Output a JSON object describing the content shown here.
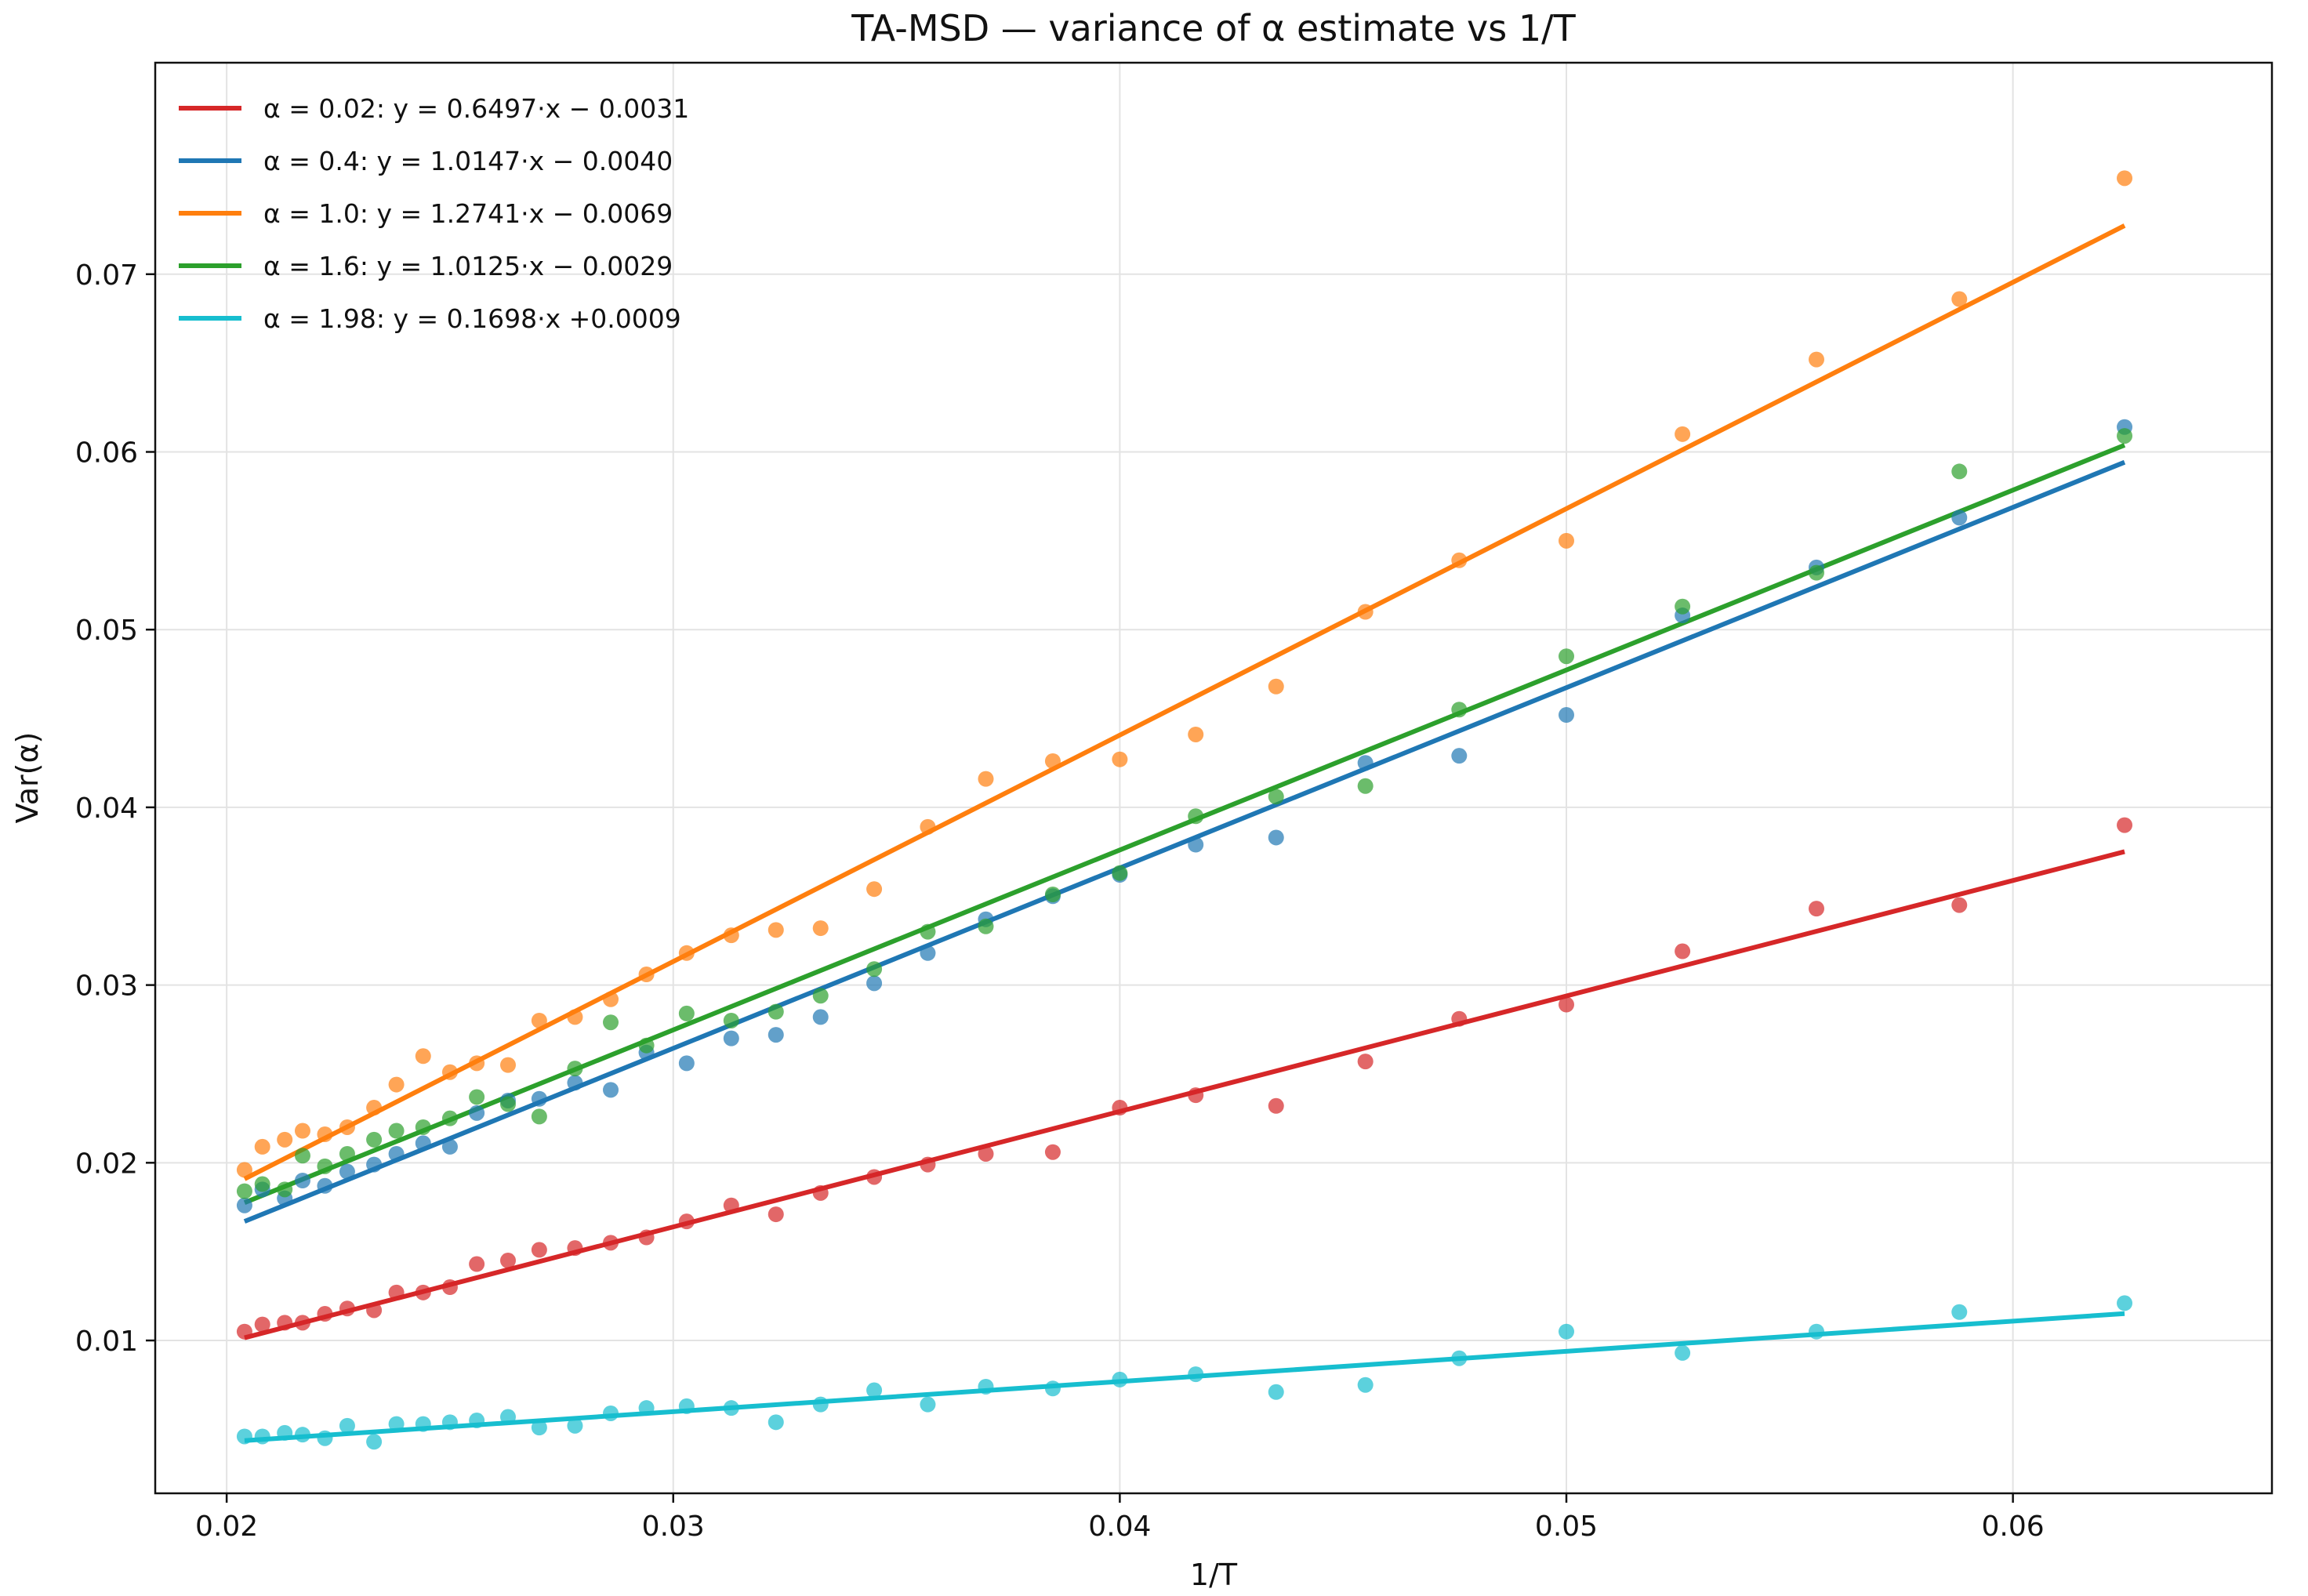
{
  "chart_data": {
    "type": "scatter",
    "title": "TA-MSD — variance of α estimate vs 1/T",
    "xlabel": "1/T",
    "ylabel": "Var(α)",
    "xlim": [
      0.0184,
      0.0658
    ],
    "ylim": [
      0.0014,
      0.0819
    ],
    "xticks": [
      0.02,
      0.03,
      0.04,
      0.05,
      0.06
    ],
    "xtick_labels": [
      "0.02",
      "0.03",
      "0.04",
      "0.05",
      "0.06"
    ],
    "yticks": [
      0.01,
      0.02,
      0.03,
      0.04,
      0.05,
      0.06,
      0.07
    ],
    "ytick_labels": [
      "0.01",
      "0.02",
      "0.03",
      "0.04",
      "0.05",
      "0.06",
      "0.07"
    ],
    "grid": true,
    "legend_position": "top-left",
    "x": [
      0.0204,
      0.0208,
      0.0213,
      0.0217,
      0.0222,
      0.0227,
      0.0233,
      0.0238,
      0.0244,
      0.025,
      0.0256,
      0.0263,
      0.027,
      0.0278,
      0.0286,
      0.0294,
      0.0303,
      0.0313,
      0.0323,
      0.0333,
      0.0345,
      0.0357,
      0.037,
      0.0385,
      0.04,
      0.0417,
      0.0435,
      0.0455,
      0.0476,
      0.05,
      0.0526,
      0.0556,
      0.0588,
      0.0625
    ],
    "series": [
      {
        "name": "α = 0.02",
        "legend_label": "α = 0.02:  y = 0.6497·x − 0.0031",
        "color": "#d62728",
        "slope": 0.6497,
        "intercept": -0.0031,
        "values": [
          0.0105,
          0.0109,
          0.011,
          0.011,
          0.0115,
          0.0118,
          0.0117,
          0.0127,
          0.0127,
          0.013,
          0.0143,
          0.0145,
          0.0151,
          0.0152,
          0.0155,
          0.0158,
          0.0167,
          0.0176,
          0.0171,
          0.0183,
          0.0192,
          0.0199,
          0.0205,
          0.0206,
          0.0231,
          0.0238,
          0.0232,
          0.0257,
          0.0281,
          0.0289,
          0.0319,
          0.0343,
          0.0345,
          0.039
        ]
      },
      {
        "name": "α = 0.4",
        "legend_label": "α = 0.4:  y = 1.0147·x −  0.0040",
        "color": "#1f77b4",
        "slope": 1.0147,
        "intercept": -0.004,
        "values": [
          0.0176,
          0.0185,
          0.018,
          0.019,
          0.0187,
          0.0195,
          0.0199,
          0.0205,
          0.0211,
          0.0209,
          0.0228,
          0.0235,
          0.0236,
          0.0245,
          0.0241,
          0.0262,
          0.0256,
          0.027,
          0.0272,
          0.0282,
          0.0301,
          0.0318,
          0.0337,
          0.035,
          0.0362,
          0.0379,
          0.0383,
          0.0425,
          0.0429,
          0.0452,
          0.0508,
          0.0535,
          0.0563,
          0.0614
        ]
      },
      {
        "name": "α = 1.0",
        "legend_label": "α = 1.0:  y = 1.2741·x −  0.0069",
        "color": "#ff7f0e",
        "slope": 1.2741,
        "intercept": -0.0069,
        "values": [
          0.0196,
          0.0209,
          0.0213,
          0.0218,
          0.0216,
          0.022,
          0.0231,
          0.0244,
          0.026,
          0.0251,
          0.0256,
          0.0255,
          0.028,
          0.0282,
          0.0292,
          0.0306,
          0.0318,
          0.0328,
          0.0331,
          0.0332,
          0.0354,
          0.0389,
          0.0416,
          0.0426,
          0.0427,
          0.0441,
          0.0468,
          0.051,
          0.0539,
          0.055,
          0.061,
          0.0652,
          0.0686,
          0.0754
        ]
      },
      {
        "name": "α = 1.6",
        "legend_label": "α = 1.6:  y = 1.0125·x −  0.0029",
        "color": "#2ca02c",
        "slope": 1.0125,
        "intercept": -0.0029,
        "values": [
          0.0184,
          0.0188,
          0.0185,
          0.0204,
          0.0198,
          0.0205,
          0.0213,
          0.0218,
          0.022,
          0.0225,
          0.0237,
          0.0233,
          0.0226,
          0.0253,
          0.0279,
          0.0266,
          0.0284,
          0.028,
          0.0285,
          0.0294,
          0.0309,
          0.033,
          0.0333,
          0.0351,
          0.0363,
          0.0395,
          0.0406,
          0.0412,
          0.0455,
          0.0485,
          0.0513,
          0.0532,
          0.0589,
          0.0609
        ]
      },
      {
        "name": "α = 1.98",
        "legend_label": "α = 1.98:  y = 0.1698·x +0.0009",
        "color": "#17becf",
        "slope": 0.1698,
        "intercept": 0.0009,
        "values": [
          0.0046,
          0.0046,
          0.0048,
          0.0047,
          0.0045,
          0.0052,
          0.0043,
          0.0053,
          0.0053,
          0.0054,
          0.0055,
          0.0057,
          0.0051,
          0.0052,
          0.0059,
          0.0062,
          0.0063,
          0.0062,
          0.0054,
          0.0064,
          0.0072,
          0.0064,
          0.0074,
          0.0073,
          0.0078,
          0.0081,
          0.0071,
          0.0075,
          0.009,
          0.0105,
          0.0093,
          0.0105,
          0.0116,
          0.0121
        ]
      }
    ]
  }
}
